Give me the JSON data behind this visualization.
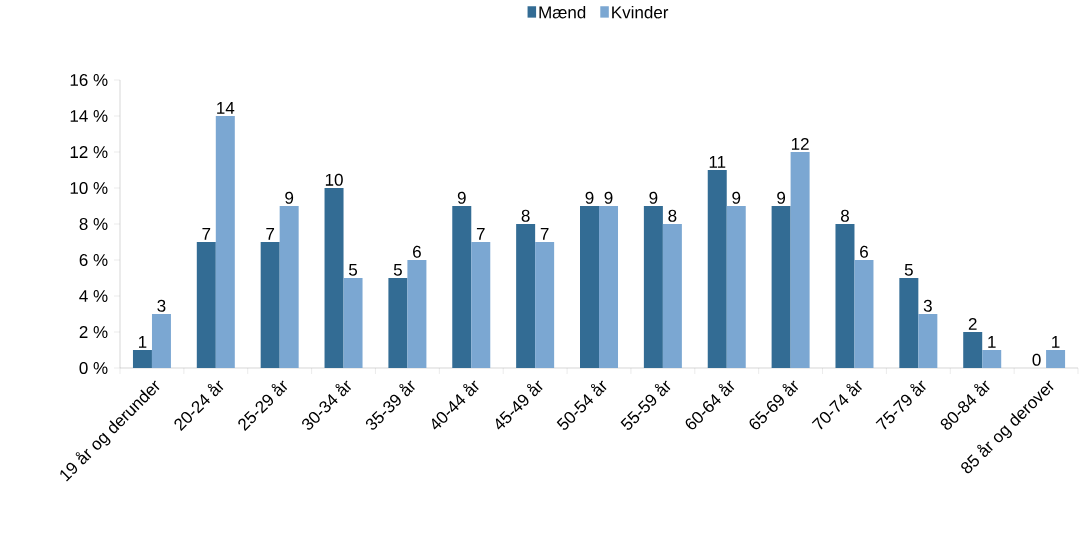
{
  "chart_data": {
    "type": "bar",
    "categories": [
      "19 år og derunder",
      "20-24 år",
      "25-29 år",
      "30-34 år",
      "35-39 år",
      "40-44 år",
      "45-49 år",
      "50-54 år",
      "55-59 år",
      "60-64 år",
      "65-69 år",
      "70-74 år",
      "75-79 år",
      "80-84 år",
      "85 år og derover"
    ],
    "series": [
      {
        "name": "Mænd",
        "color": "#336c94",
        "values": [
          1,
          7,
          7,
          10,
          5,
          9,
          8,
          9,
          9,
          11,
          9,
          8,
          5,
          2,
          0
        ]
      },
      {
        "name": "Kvinder",
        "color": "#7ba7d2",
        "values": [
          3,
          14,
          9,
          5,
          6,
          7,
          7,
          9,
          8,
          9,
          12,
          6,
          3,
          1,
          1
        ]
      }
    ],
    "ylim": [
      0,
      16
    ],
    "yticks": [
      {
        "value": 0,
        "label": "0 %"
      },
      {
        "value": 2,
        "label": "2 %"
      },
      {
        "value": 4,
        "label": "4 %"
      },
      {
        "value": 6,
        "label": "6 %"
      },
      {
        "value": 8,
        "label": "8 %"
      },
      {
        "value": 10,
        "label": "10 %"
      },
      {
        "value": 12,
        "label": "12 %"
      },
      {
        "value": 14,
        "label": "14 %"
      },
      {
        "value": 16,
        "label": "16 %"
      }
    ],
    "data_labels": true,
    "legend": "top"
  }
}
